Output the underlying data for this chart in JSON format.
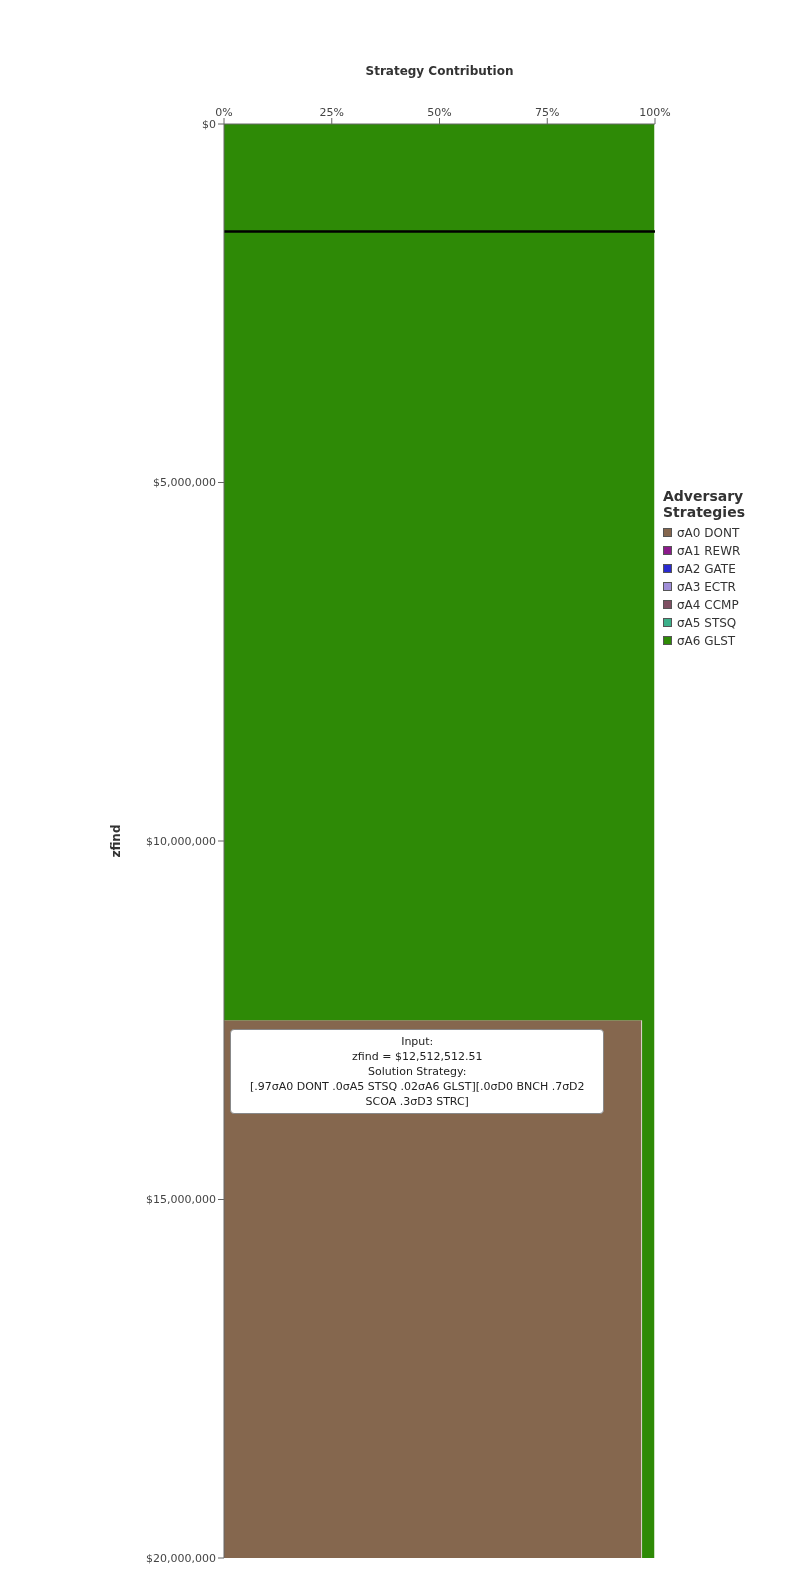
{
  "chart_data": {
    "type": "area",
    "stacked": true,
    "orientation": "horizontal",
    "xlabel": "Strategy Contribution",
    "ylabel": "zfind",
    "legend_title": "Adversary Strategies",
    "legend": "right",
    "grid": false,
    "x": [
      0,
      12500000,
      12500000,
      20000000
    ],
    "series": [
      {
        "name": "σA0 DONT",
        "color": "#85674e",
        "values": [
          null,
          null,
          97,
          97
        ]
      },
      {
        "name": "σA1 REWR",
        "color": "#8b1a8b",
        "values": [
          null,
          null,
          null,
          null
        ]
      },
      {
        "name": "σA2 GATE",
        "color": "#2a2ad0",
        "values": [
          null,
          null,
          null,
          null
        ]
      },
      {
        "name": "σA3 ECTR",
        "color": "#a08ed8",
        "values": [
          null,
          null,
          null,
          null
        ]
      },
      {
        "name": "σA4 CCMP",
        "color": "#7e4f62",
        "values": [
          null,
          null,
          null,
          null
        ]
      },
      {
        "name": "σA5 STSQ",
        "color": "#3cb08a",
        "values": [
          null,
          null,
          null,
          null
        ]
      },
      {
        "name": "σA6 GLST",
        "color": "#2e8a06",
        "values": [
          100,
          100,
          3,
          3
        ]
      }
    ],
    "xlim": [
      0,
      100
    ],
    "xticks": [
      {
        "value": 0,
        "label": "0%"
      },
      {
        "value": 25,
        "label": "25%"
      },
      {
        "value": 50,
        "label": "50%"
      },
      {
        "value": 75,
        "label": "75%"
      },
      {
        "value": 100,
        "label": "100%"
      }
    ],
    "ylim": [
      20000000,
      0
    ],
    "yticks": [
      {
        "value": 0,
        "label": "$0"
      },
      {
        "value": 5000000,
        "label": "$5,000,000"
      },
      {
        "value": 10000000,
        "label": "$10,000,000"
      },
      {
        "value": 15000000,
        "label": "$15,000,000"
      },
      {
        "value": 20000000,
        "label": "$20,000,000"
      }
    ],
    "ref_lines": [
      {
        "axis": "y",
        "value": 1500000,
        "color": "#000000"
      }
    ],
    "annotations": [
      {
        "text": "Input:\nzfind = $12,512,512.51\nSolution Strategy:\n[.97σA0 DONT .0σA5 STSQ .02σA6 GLST][.0σD0 BNCH .7σD2 SCOA .3σD3 STRC]",
        "x": 75,
        "y": 12512512.51
      }
    ]
  }
}
